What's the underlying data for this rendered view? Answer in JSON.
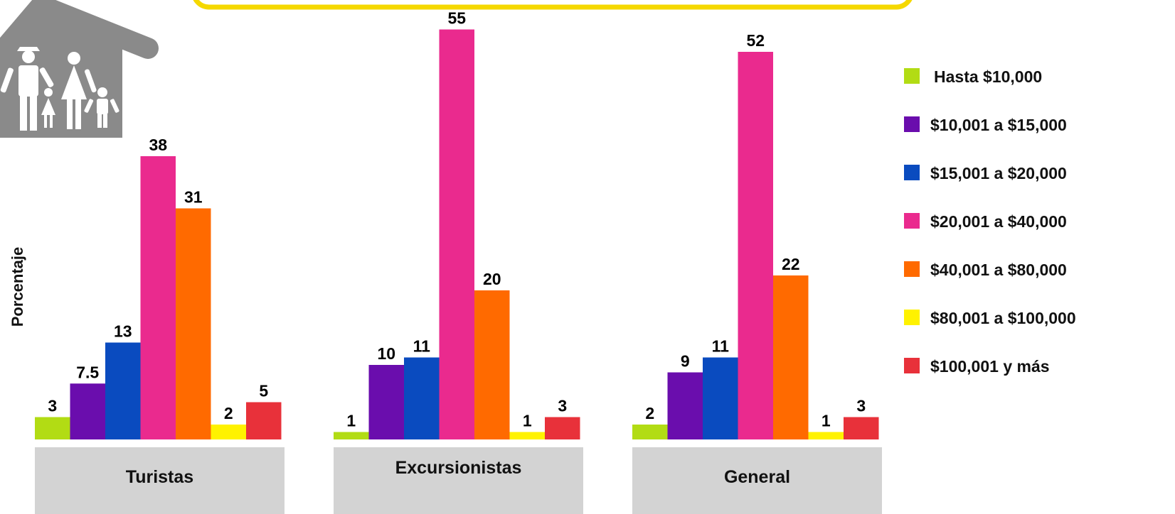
{
  "colors": {
    "banner_border": "#f5d800",
    "icon_gray": "#8a8a8a",
    "category_box": "#d3d3d3"
  },
  "icons": [
    "house-family-icon"
  ],
  "chart_data": {
    "type": "bar",
    "title": "",
    "xlabel": "",
    "ylabel": "Porcentaje",
    "ylim": [
      0,
      55
    ],
    "grid": false,
    "legend_position": "right",
    "categories": [
      "Turistas",
      "Excursionistas",
      "General"
    ],
    "series": [
      {
        "name": "Hasta $10,000",
        "color": "#b2dc14",
        "values": [
          3,
          1,
          2
        ],
        "labels": [
          "3",
          "1",
          "2"
        ]
      },
      {
        "name": "$10,001 a $15,000",
        "color": "#6a0dad",
        "values": [
          7.5,
          10,
          9
        ],
        "labels": [
          "7.5",
          "10",
          "9"
        ]
      },
      {
        "name": "$15,001 a $20,000",
        "color": "#0a4bbf",
        "values": [
          13,
          11,
          11
        ],
        "labels": [
          "13",
          "11",
          "11"
        ]
      },
      {
        "name": "$20,001 a $40,000",
        "color": "#ea2a8e",
        "values": [
          38,
          55,
          52
        ],
        "labels": [
          "38",
          "55",
          "52"
        ]
      },
      {
        "name": "$40,001 a $80,000",
        "color": "#ff6a00",
        "values": [
          31,
          20,
          22
        ],
        "labels": [
          "31",
          "20",
          "22"
        ]
      },
      {
        "name": "$80,001 a $100,000",
        "color": "#fff200",
        "values": [
          2,
          1,
          1
        ],
        "labels": [
          "2",
          "1",
          "1"
        ]
      },
      {
        "name": "$100,001 y más",
        "color": "#e8313a",
        "values": [
          5,
          3,
          3
        ],
        "labels": [
          "5",
          "3",
          "3"
        ]
      }
    ]
  }
}
